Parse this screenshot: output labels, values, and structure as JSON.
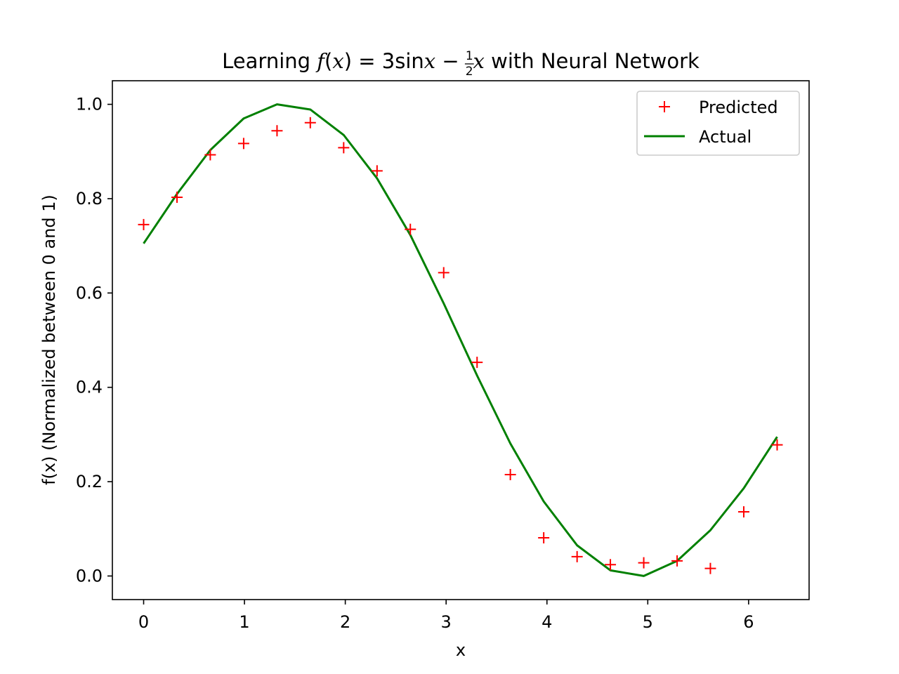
{
  "chart_data": {
    "type": "line",
    "title": {
      "prefix": "Learning ",
      "f": "f",
      "lparen": "(",
      "x_var": "x",
      "rparen": ")",
      "eq": " = 3",
      "sin": "sin",
      "x2": "x",
      "minus": " − ",
      "frac_num": "1",
      "frac_den": "2",
      "x3": "x",
      "suffix": " with Neural Network"
    },
    "xlabel": "x",
    "ylabel": "f(x) (Normalized between 0 and 1)",
    "xlim": [
      -0.31,
      6.6
    ],
    "ylim": [
      -0.05,
      1.05
    ],
    "xticks": [
      0,
      1,
      2,
      3,
      4,
      5,
      6
    ],
    "xtick_labels": [
      "0",
      "1",
      "2",
      "3",
      "4",
      "5",
      "6"
    ],
    "yticks": [
      0.0,
      0.2,
      0.4,
      0.6,
      0.8,
      1.0
    ],
    "ytick_labels": [
      "0.0",
      "0.2",
      "0.4",
      "0.6",
      "0.8",
      "1.0"
    ],
    "grid": false,
    "legend_position": "top-right",
    "series": [
      {
        "name": "Predicted",
        "style": "marker-plus",
        "color": "#ff0000",
        "x": [
          0,
          0.331,
          0.661,
          0.992,
          1.323,
          1.653,
          1.984,
          2.315,
          2.645,
          2.976,
          3.307,
          3.637,
          3.968,
          4.299,
          4.629,
          4.96,
          5.291,
          5.621,
          5.952,
          6.283
        ],
        "y": [
          0.745,
          0.803,
          0.893,
          0.917,
          0.944,
          0.961,
          0.908,
          0.859,
          0.735,
          0.643,
          0.453,
          0.215,
          0.081,
          0.041,
          0.024,
          0.028,
          0.032,
          0.016,
          0.136,
          0.278
        ]
      },
      {
        "name": "Actual",
        "style": "line",
        "color": "#008000",
        "x": [
          0,
          0.331,
          0.661,
          0.992,
          1.323,
          1.653,
          1.984,
          2.315,
          2.645,
          2.976,
          3.307,
          3.637,
          3.968,
          4.299,
          4.629,
          4.96,
          5.291,
          5.621,
          5.952,
          6.283
        ],
        "y": [
          0.705,
          0.81,
          0.903,
          0.97,
          1.0,
          0.989,
          0.935,
          0.843,
          0.723,
          0.578,
          0.425,
          0.281,
          0.158,
          0.065,
          0.012,
          0.0,
          0.032,
          0.097,
          0.186,
          0.295
        ]
      }
    ]
  }
}
